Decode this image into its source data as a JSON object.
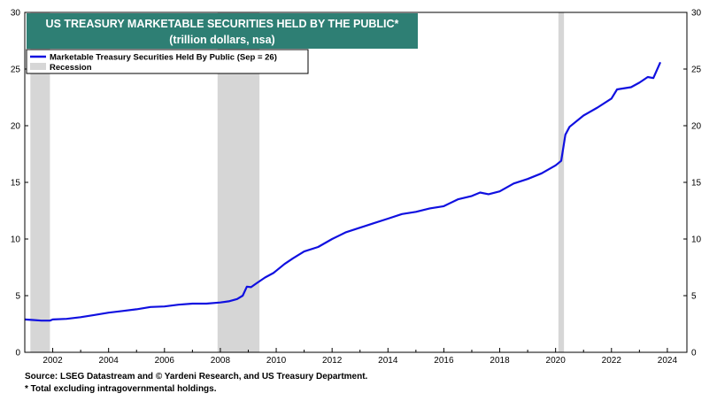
{
  "chart_data": {
    "type": "line",
    "title": "US TREASURY MARKETABLE SECURITIES HELD BY THE PUBLIC*",
    "subtitle": "(trillion dollars, nsa)",
    "ylabel": "",
    "xlabel": "",
    "ylim": [
      0,
      30
    ],
    "xlim": [
      2001.0,
      2024.7
    ],
    "y_ticks": [
      0,
      5,
      10,
      15,
      20,
      25,
      30
    ],
    "x_ticks": [
      2002,
      2004,
      2006,
      2008,
      2010,
      2012,
      2014,
      2016,
      2018,
      2020,
      2022,
      2024
    ],
    "legend": {
      "placement": "top-left",
      "entries": [
        {
          "label": "Marketable Treasury Securities Held By Public (Sep = 26)",
          "color": "#1010e0",
          "kind": "line"
        },
        {
          "label": "Recession",
          "color": "#d6d6d6",
          "kind": "box"
        }
      ]
    },
    "recessions": [
      {
        "start": 2001.2,
        "end": 2001.9
      },
      {
        "start": 2007.9,
        "end": 2009.4
      },
      {
        "start": 2020.1,
        "end": 2020.3
      }
    ],
    "series": [
      {
        "name": "Marketable Treasury Securities Held By Public (Sep = 26)",
        "color": "#1010e0",
        "points": [
          [
            2001.0,
            2.9
          ],
          [
            2001.3,
            2.85
          ],
          [
            2001.6,
            2.8
          ],
          [
            2001.9,
            2.8
          ],
          [
            2002.0,
            2.9
          ],
          [
            2002.5,
            2.95
          ],
          [
            2003.0,
            3.1
          ],
          [
            2003.5,
            3.3
          ],
          [
            2004.0,
            3.5
          ],
          [
            2004.5,
            3.65
          ],
          [
            2005.0,
            3.8
          ],
          [
            2005.5,
            4.0
          ],
          [
            2006.0,
            4.05
          ],
          [
            2006.5,
            4.2
          ],
          [
            2007.0,
            4.3
          ],
          [
            2007.5,
            4.3
          ],
          [
            2008.0,
            4.4
          ],
          [
            2008.3,
            4.5
          ],
          [
            2008.6,
            4.7
          ],
          [
            2008.8,
            5.0
          ],
          [
            2008.95,
            5.8
          ],
          [
            2009.1,
            5.75
          ],
          [
            2009.3,
            6.1
          ],
          [
            2009.6,
            6.6
          ],
          [
            2009.9,
            7.0
          ],
          [
            2010.0,
            7.2
          ],
          [
            2010.3,
            7.8
          ],
          [
            2010.6,
            8.3
          ],
          [
            2011.0,
            8.9
          ],
          [
            2011.5,
            9.3
          ],
          [
            2012.0,
            10.0
          ],
          [
            2012.5,
            10.6
          ],
          [
            2013.0,
            11.0
          ],
          [
            2013.5,
            11.4
          ],
          [
            2014.0,
            11.8
          ],
          [
            2014.5,
            12.2
          ],
          [
            2015.0,
            12.4
          ],
          [
            2015.5,
            12.7
          ],
          [
            2016.0,
            12.9
          ],
          [
            2016.5,
            13.5
          ],
          [
            2017.0,
            13.8
          ],
          [
            2017.3,
            14.1
          ],
          [
            2017.6,
            13.95
          ],
          [
            2018.0,
            14.2
          ],
          [
            2018.5,
            14.9
          ],
          [
            2019.0,
            15.3
          ],
          [
            2019.5,
            15.8
          ],
          [
            2020.0,
            16.5
          ],
          [
            2020.2,
            16.9
          ],
          [
            2020.35,
            19.2
          ],
          [
            2020.5,
            19.9
          ],
          [
            2021.0,
            20.9
          ],
          [
            2021.5,
            21.6
          ],
          [
            2022.0,
            22.4
          ],
          [
            2022.2,
            23.2
          ],
          [
            2022.7,
            23.4
          ],
          [
            2023.0,
            23.8
          ],
          [
            2023.3,
            24.3
          ],
          [
            2023.5,
            24.2
          ],
          [
            2023.75,
            25.6
          ]
        ]
      }
    ],
    "footnotes": {
      "source": "Source: LSEG Datastream and © Yardeni Research, and US Treasury Department.",
      "note": "* Total excluding intragovernmental holdings."
    }
  }
}
